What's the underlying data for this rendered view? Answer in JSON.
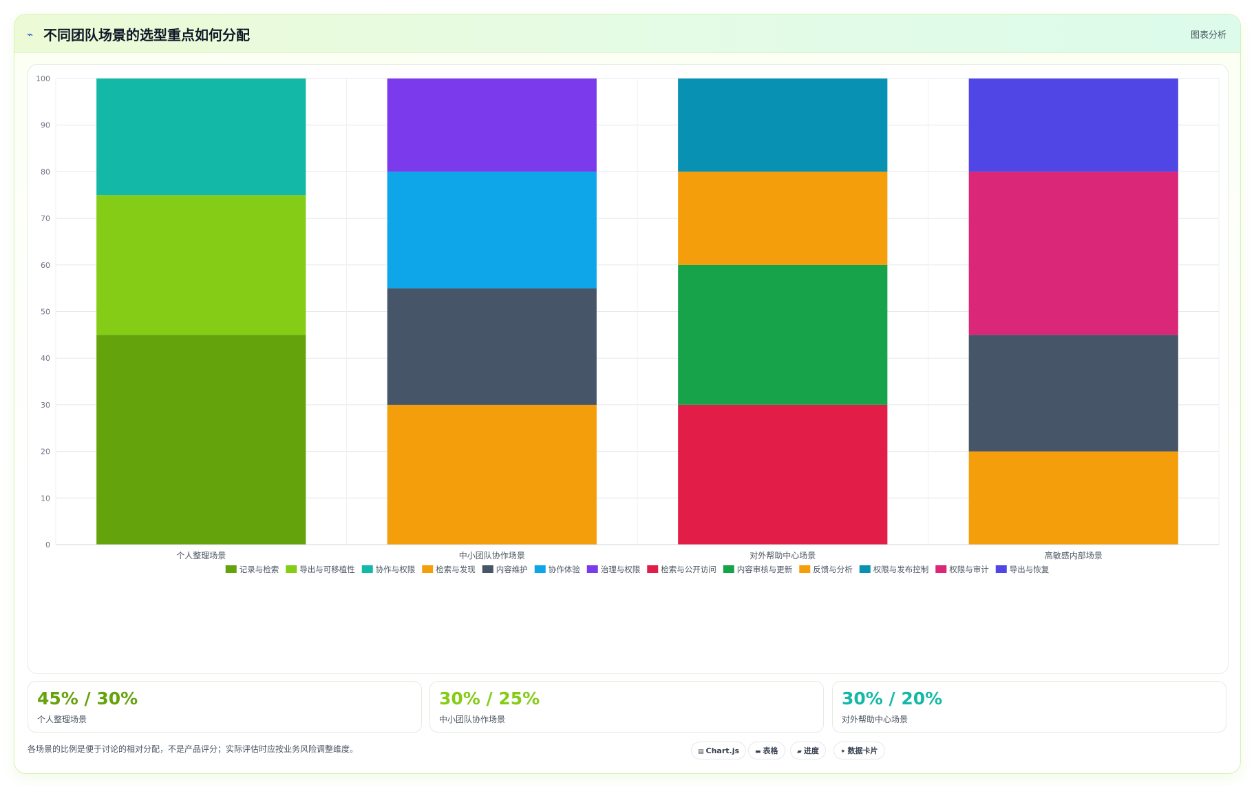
{
  "header": {
    "icon": "chart-line-icon",
    "title": "不同团队场景的选型重点如何分配",
    "link_label": "图表分析"
  },
  "chart_data": {
    "type": "bar",
    "stacked": true,
    "categories": [
      "个人整理场景",
      "中小团队协作场景",
      "对外帮助中心场景",
      "高敏感内部场景"
    ],
    "ylim": [
      0,
      100
    ],
    "yticks": [
      0,
      10,
      20,
      30,
      40,
      50,
      60,
      70,
      80,
      90,
      100
    ],
    "grid": true,
    "legend_position": "bottom",
    "series": [
      {
        "name": "记录与检索",
        "color": "#65a30d",
        "values": [
          45,
          0,
          0,
          0
        ]
      },
      {
        "name": "导出与可移植性",
        "color": "#84cc16",
        "values": [
          30,
          0,
          0,
          0
        ]
      },
      {
        "name": "协作与权限",
        "color": "#14b8a6",
        "values": [
          25,
          0,
          0,
          0
        ]
      },
      {
        "name": "检索与发现",
        "color": "#f59e0b",
        "values": [
          0,
          30,
          0,
          0
        ]
      },
      {
        "name": "内容维护",
        "color": "#475569",
        "values": [
          0,
          25,
          0,
          0
        ]
      },
      {
        "name": "协作体验",
        "color": "#0ea5e9",
        "values": [
          0,
          25,
          0,
          0
        ]
      },
      {
        "name": "治理与权限",
        "color": "#7c3aed",
        "values": [
          0,
          20,
          0,
          0
        ]
      },
      {
        "name": "检索与公开访问",
        "color": "#e11d48",
        "values": [
          0,
          0,
          30,
          0
        ]
      },
      {
        "name": "内容审核与更新",
        "color": "#16a34a",
        "values": [
          0,
          0,
          30,
          0
        ]
      },
      {
        "name": "反馈与分析",
        "color": "#f59e0b",
        "values": [
          0,
          0,
          20,
          0
        ]
      },
      {
        "name": "权限与发布控制",
        "color": "#0891b2",
        "values": [
          0,
          0,
          20,
          0
        ]
      },
      {
        "name": "权限与审计",
        "color": "#db2777",
        "values": [
          0,
          0,
          0,
          35
        ]
      },
      {
        "name": "导出与恢复",
        "color": "#4f46e5",
        "values": [
          0,
          0,
          0,
          20
        ]
      }
    ],
    "extra_segments": [
      {
        "category": 3,
        "bottom": 0,
        "value": 20,
        "color": "#f59e0b"
      },
      {
        "category": 3,
        "bottom": 20,
        "value": 25,
        "color": "#475569"
      }
    ]
  },
  "stats": [
    {
      "value": "45% / 30%",
      "label": "个人整理场景",
      "color": "#65a30d"
    },
    {
      "value": "30% / 25%",
      "label": "中小团队协作场景",
      "color": "#84cc16"
    },
    {
      "value": "30% / 20%",
      "label": "对外帮助中心场景",
      "color": "#14b8a6"
    }
  ],
  "footnote": "各场景的比例是便于讨论的相对分配，不是产品评分；实际评估时应按业务风险调整维度。",
  "chips": [
    {
      "icon": "chart-icon",
      "label": "Chart.js"
    },
    {
      "icon": "table-icon",
      "label": "表格"
    },
    {
      "icon": "progress-icon",
      "label": "进度"
    },
    {
      "icon": "sparkle-icon",
      "label": "数据卡片"
    }
  ]
}
